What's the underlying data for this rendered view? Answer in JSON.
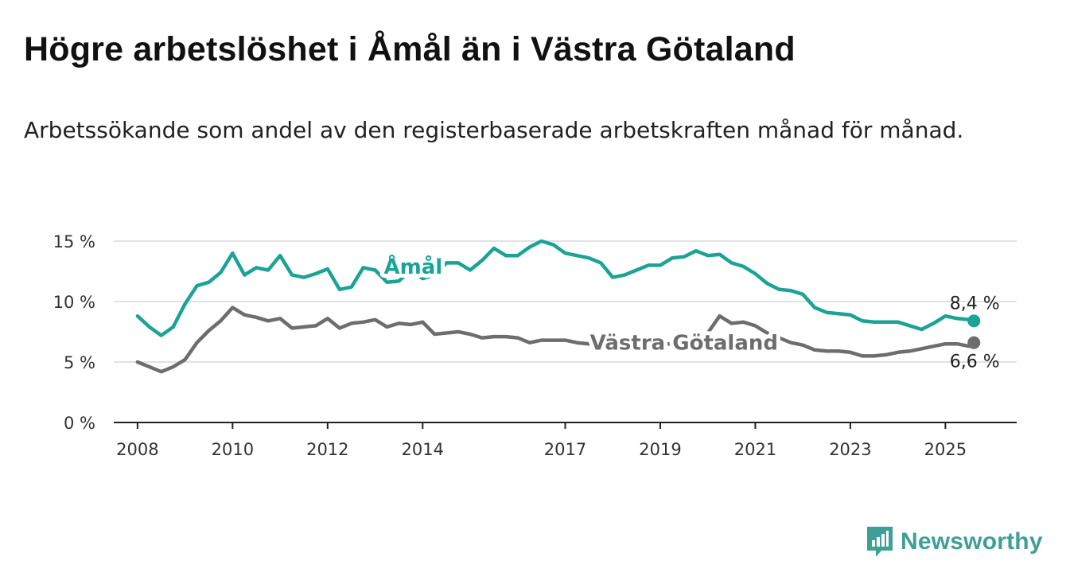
{
  "header": {
    "title": "Högre arbetslöshet i Åmål än i Västra Götaland",
    "subtitle": "Arbetssökande som andel av den registerbaserade arbetskraften månad för månad."
  },
  "brand": {
    "name": "Newsworthy",
    "icon": "bar-chart-logo-icon",
    "color": "#3f9f97"
  },
  "chart_data": {
    "type": "line",
    "xlabel": "",
    "ylabel": "",
    "xlim": [
      2007.5,
      2026.5
    ],
    "ylim": [
      0,
      15
    ],
    "grid": true,
    "y_ticks": [
      {
        "value": 0,
        "label": "0 %"
      },
      {
        "value": 5,
        "label": "5 %"
      },
      {
        "value": 10,
        "label": "10 %"
      },
      {
        "value": 15,
        "label": "15 %"
      }
    ],
    "x_ticks": [
      {
        "value": 2008,
        "label": "2008"
      },
      {
        "value": 2010,
        "label": "2010"
      },
      {
        "value": 2012,
        "label": "2012"
      },
      {
        "value": 2014,
        "label": "2014"
      },
      {
        "value": 2017,
        "label": "2017"
      },
      {
        "value": 2019,
        "label": "2019"
      },
      {
        "value": 2021,
        "label": "2021"
      },
      {
        "value": 2023,
        "label": "2023"
      },
      {
        "value": 2025,
        "label": "2025"
      }
    ],
    "series": [
      {
        "name": "Åmål",
        "color": "#1ba396",
        "end_label": "8,4 %",
        "x": [
          2008.0,
          2008.25,
          2008.5,
          2008.75,
          2009.0,
          2009.25,
          2009.5,
          2009.75,
          2010.0,
          2010.25,
          2010.5,
          2010.75,
          2011.0,
          2011.25,
          2011.5,
          2011.75,
          2012.0,
          2012.25,
          2012.5,
          2012.75,
          2013.0,
          2013.25,
          2013.5,
          2013.75,
          2014.0,
          2014.25,
          2014.5,
          2014.75,
          2015.0,
          2015.25,
          2015.5,
          2015.75,
          2016.0,
          2016.25,
          2016.5,
          2016.75,
          2017.0,
          2017.25,
          2017.5,
          2017.75,
          2018.0,
          2018.25,
          2018.5,
          2018.75,
          2019.0,
          2019.25,
          2019.5,
          2019.75,
          2020.0,
          2020.25,
          2020.5,
          2020.75,
          2021.0,
          2021.25,
          2021.5,
          2021.75,
          2022.0,
          2022.25,
          2022.5,
          2022.75,
          2023.0,
          2023.25,
          2023.5,
          2023.75,
          2024.0,
          2024.25,
          2024.5,
          2024.75,
          2025.0,
          2025.25,
          2025.5,
          2025.6
        ],
        "y": [
          8.8,
          7.9,
          7.2,
          7.9,
          9.8,
          11.3,
          11.6,
          12.4,
          14.0,
          12.2,
          12.8,
          12.6,
          13.8,
          12.2,
          12.0,
          12.3,
          12.7,
          11.0,
          11.2,
          12.8,
          12.6,
          11.6,
          11.7,
          12.6,
          11.9,
          12.2,
          13.2,
          13.2,
          12.6,
          13.4,
          14.4,
          13.8,
          13.8,
          14.5,
          15.0,
          14.7,
          14.0,
          13.8,
          13.6,
          13.2,
          12.0,
          12.2,
          12.6,
          13.0,
          13.0,
          13.6,
          13.7,
          14.2,
          13.8,
          13.9,
          13.2,
          12.9,
          12.3,
          11.5,
          11.0,
          10.9,
          10.6,
          9.5,
          9.1,
          9.0,
          8.9,
          8.4,
          8.3,
          8.3,
          8.3,
          8.0,
          7.7,
          8.2,
          8.8,
          8.6,
          8.5,
          8.4
        ]
      },
      {
        "name": "Västra Götaland",
        "color": "#6d6d70",
        "end_label": "6,6 %",
        "x": [
          2008.0,
          2008.25,
          2008.5,
          2008.75,
          2009.0,
          2009.25,
          2009.5,
          2009.75,
          2010.0,
          2010.25,
          2010.5,
          2010.75,
          2011.0,
          2011.25,
          2011.5,
          2011.75,
          2012.0,
          2012.25,
          2012.5,
          2012.75,
          2013.0,
          2013.25,
          2013.5,
          2013.75,
          2014.0,
          2014.25,
          2014.5,
          2014.75,
          2015.0,
          2015.25,
          2015.5,
          2015.75,
          2016.0,
          2016.25,
          2016.5,
          2016.75,
          2017.0,
          2017.25,
          2017.5,
          2017.75,
          2018.0,
          2018.25,
          2018.5,
          2018.75,
          2019.0,
          2019.25,
          2019.5,
          2019.75,
          2020.0,
          2020.25,
          2020.5,
          2020.75,
          2021.0,
          2021.25,
          2021.5,
          2021.75,
          2022.0,
          2022.25,
          2022.5,
          2022.75,
          2023.0,
          2023.25,
          2023.5,
          2023.75,
          2024.0,
          2024.25,
          2024.5,
          2024.75,
          2025.0,
          2025.25,
          2025.5,
          2025.6
        ],
        "y": [
          5.0,
          4.6,
          4.2,
          4.6,
          5.2,
          6.6,
          7.6,
          8.4,
          9.5,
          8.9,
          8.7,
          8.4,
          8.6,
          7.8,
          7.9,
          8.0,
          8.6,
          7.8,
          8.2,
          8.3,
          8.5,
          7.9,
          8.2,
          8.1,
          8.3,
          7.3,
          7.4,
          7.5,
          7.3,
          7.0,
          7.1,
          7.1,
          7.0,
          6.6,
          6.8,
          6.8,
          6.8,
          6.6,
          6.5,
          6.5,
          6.5,
          6.5,
          6.4,
          6.5,
          6.5,
          6.5,
          6.6,
          6.8,
          7.4,
          8.8,
          8.2,
          8.3,
          8.0,
          7.4,
          7.0,
          6.6,
          6.4,
          6.0,
          5.9,
          5.9,
          5.8,
          5.5,
          5.5,
          5.6,
          5.8,
          5.9,
          6.1,
          6.3,
          6.5,
          6.5,
          6.3,
          6.6
        ]
      }
    ]
  }
}
